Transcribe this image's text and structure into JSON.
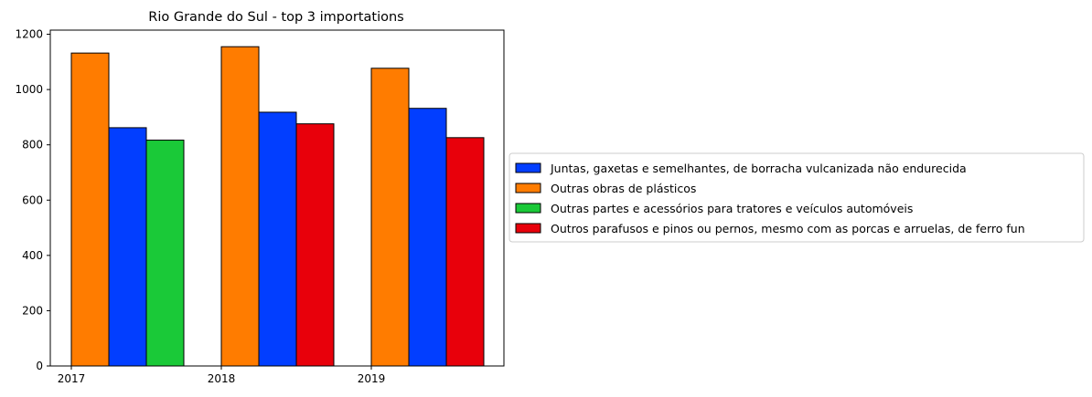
{
  "chart_data": {
    "type": "bar",
    "title": "Rio Grande do Sul - top 3 importations",
    "xlabel": "",
    "ylabel": "",
    "categories": [
      "2017",
      "2018",
      "2019"
    ],
    "ylim": [
      0,
      1215
    ],
    "yticks": [
      0,
      200,
      400,
      600,
      800,
      1000,
      1200
    ],
    "legend_position": "right-center",
    "bar_edge_color": "#000000",
    "series": [
      {
        "name": "Juntas, gaxetas e semelhantes, de borracha vulcanizada não endurecida",
        "color": "#023eff",
        "values": [
          862,
          918,
          932
        ]
      },
      {
        "name": "Outras obras de plásticos",
        "color": "#ff7c00",
        "values": [
          1132,
          1155,
          1077
        ]
      },
      {
        "name": "Outras partes e acessórios para tratores e veículos automóveis",
        "color": "#1ac938",
        "values": [
          817,
          null,
          null
        ]
      },
      {
        "name": "Outros parafusos e pinos ou pernos, mesmo com as porcas e arruelas, de ferro fun",
        "color": "#e8000b",
        "values": [
          null,
          876,
          826
        ]
      }
    ],
    "bar_order_per_category": [
      [
        "Outras obras de plásticos",
        "Juntas, gaxetas e semelhantes, de borracha vulcanizada não endurecida",
        "Outras partes e acessórios para tratores e veículos automóveis"
      ],
      [
        "Outras obras de plásticos",
        "Juntas, gaxetas e semelhantes, de borracha vulcanizada não endurecida",
        "Outros parafusos e pinos ou pernos, mesmo com as porcas e arruelas, de ferro fun"
      ],
      [
        "Outras obras de plásticos",
        "Juntas, gaxetas e semelhantes, de borracha vulcanizada não endurecida",
        "Outros parafusos e pinos ou pernos, mesmo com as porcas e arruelas, de ferro fun"
      ]
    ]
  }
}
